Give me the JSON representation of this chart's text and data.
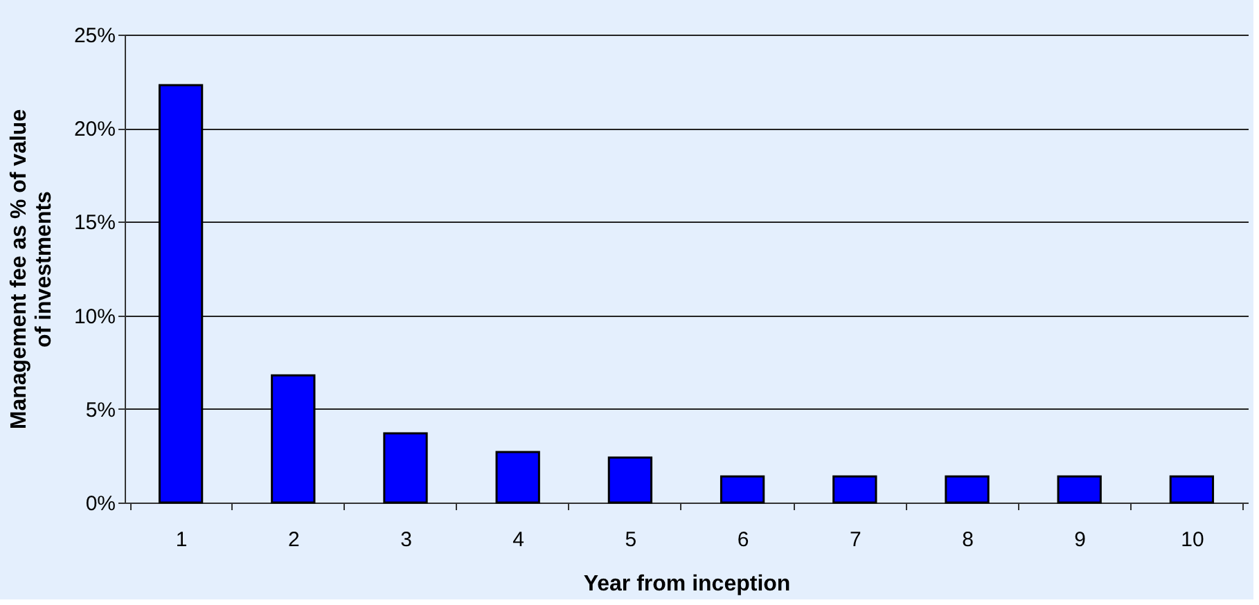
{
  "chart_data": {
    "type": "bar",
    "xlabel": "Year from inception",
    "ylabel": "Management fee as % of value\nof investments",
    "categories": [
      "1",
      "2",
      "3",
      "4",
      "5",
      "6",
      "7",
      "8",
      "9",
      "10"
    ],
    "values": [
      22.3,
      6.8,
      3.7,
      2.7,
      2.4,
      1.4,
      1.4,
      1.4,
      1.4,
      1.4
    ],
    "color": "#0000ff",
    "ylim": [
      0,
      25
    ],
    "yticks": [
      {
        "value": 0,
        "label": "0%"
      },
      {
        "value": 5,
        "label": "5%"
      },
      {
        "value": 10,
        "label": "10%"
      },
      {
        "value": 15,
        "label": "15%"
      },
      {
        "value": 20,
        "label": "20%"
      },
      {
        "value": 25,
        "label": "25%"
      }
    ],
    "grid": "y"
  }
}
